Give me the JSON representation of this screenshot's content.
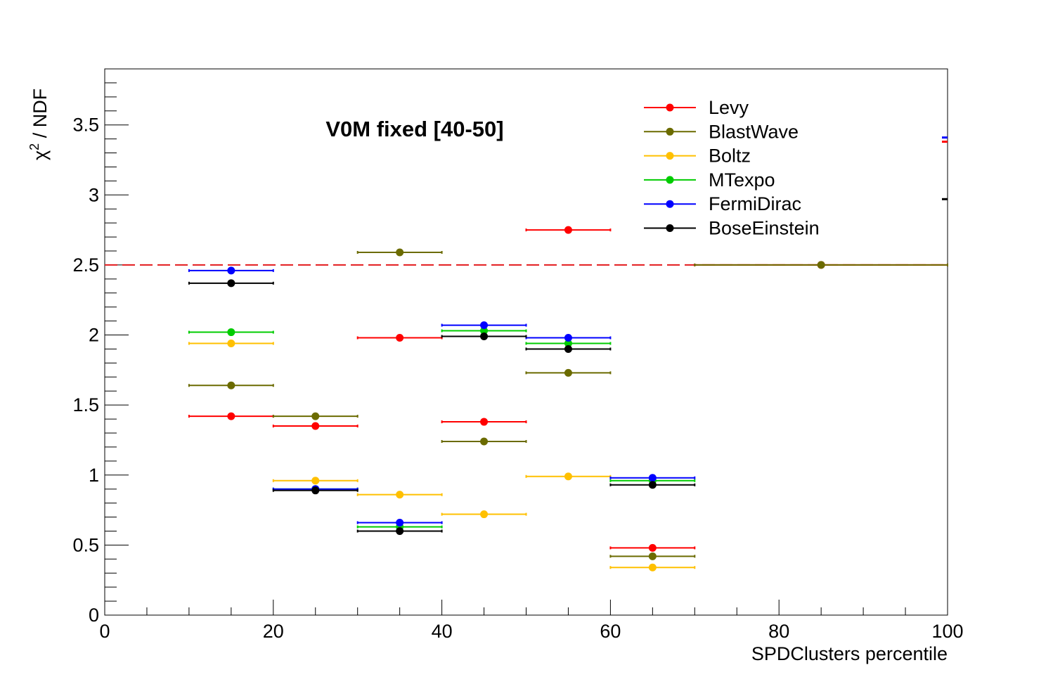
{
  "chart_data": {
    "type": "scatter",
    "title": "V0M fixed [40-50]",
    "xlabel": "SPDClusters percentile",
    "ylabel_base": "χ",
    "ylabel_sup": "2",
    "ylabel_rest": " / NDF",
    "xlim": [
      0,
      100
    ],
    "ylim": [
      0,
      3.9
    ],
    "x_ticks": [
      "0",
      "20",
      "40",
      "60",
      "80",
      "100"
    ],
    "y_ticks": [
      "0",
      "0.5",
      "1",
      "1.5",
      "2",
      "2.5",
      "3",
      "3.5"
    ],
    "reference_line": {
      "y": 2.5,
      "color": "#e31a1c",
      "style": "dashed"
    },
    "legend_position": "top-right",
    "series": [
      {
        "name": "Levy",
        "color": "#ff0000",
        "points": [
          {
            "x": 15,
            "xlo": 10,
            "xhi": 20,
            "y": 1.42
          },
          {
            "x": 25,
            "xlo": 20,
            "xhi": 30,
            "y": 1.35
          },
          {
            "x": 35,
            "xlo": 30,
            "xhi": 40,
            "y": 1.98
          },
          {
            "x": 45,
            "xlo": 40,
            "xhi": 50,
            "y": 1.38
          },
          {
            "x": 55,
            "xlo": 50,
            "xhi": 60,
            "y": 2.75
          },
          {
            "x": 65,
            "xlo": 60,
            "xhi": 70,
            "y": 0.48
          },
          {
            "x": 85,
            "xlo": 70,
            "xhi": 100,
            "y": 2.5
          }
        ],
        "edge_value": 3.38
      },
      {
        "name": "BlastWave",
        "color": "#6b6b00",
        "points": [
          {
            "x": 15,
            "xlo": 10,
            "xhi": 20,
            "y": 1.64
          },
          {
            "x": 25,
            "xlo": 20,
            "xhi": 30,
            "y": 1.42
          },
          {
            "x": 35,
            "xlo": 30,
            "xhi": 40,
            "y": 2.59
          },
          {
            "x": 45,
            "xlo": 40,
            "xhi": 50,
            "y": 1.24
          },
          {
            "x": 55,
            "xlo": 50,
            "xhi": 60,
            "y": 1.73
          },
          {
            "x": 65,
            "xlo": 60,
            "xhi": 70,
            "y": 0.42
          },
          {
            "x": 85,
            "xlo": 70,
            "xhi": 100,
            "y": 2.5
          }
        ]
      },
      {
        "name": "Boltz",
        "color": "#ffc000",
        "points": [
          {
            "x": 15,
            "xlo": 10,
            "xhi": 20,
            "y": 1.94
          },
          {
            "x": 25,
            "xlo": 20,
            "xhi": 30,
            "y": 0.96
          },
          {
            "x": 35,
            "xlo": 30,
            "xhi": 40,
            "y": 0.86
          },
          {
            "x": 45,
            "xlo": 40,
            "xhi": 50,
            "y": 0.72
          },
          {
            "x": 55,
            "xlo": 50,
            "xhi": 60,
            "y": 0.99
          },
          {
            "x": 65,
            "xlo": 60,
            "xhi": 70,
            "y": 0.34
          }
        ]
      },
      {
        "name": "MTexpo",
        "color": "#00cc00",
        "points": [
          {
            "x": 15,
            "xlo": 10,
            "xhi": 20,
            "y": 2.02
          },
          {
            "x": 25,
            "xlo": 20,
            "xhi": 30,
            "y": 0.9
          },
          {
            "x": 35,
            "xlo": 30,
            "xhi": 40,
            "y": 0.63
          },
          {
            "x": 45,
            "xlo": 40,
            "xhi": 50,
            "y": 2.03
          },
          {
            "x": 55,
            "xlo": 50,
            "xhi": 60,
            "y": 1.94
          },
          {
            "x": 65,
            "xlo": 60,
            "xhi": 70,
            "y": 0.96
          }
        ]
      },
      {
        "name": "FermiDirac",
        "color": "#0000ff",
        "points": [
          {
            "x": 15,
            "xlo": 10,
            "xhi": 20,
            "y": 2.46
          },
          {
            "x": 25,
            "xlo": 20,
            "xhi": 30,
            "y": 0.9
          },
          {
            "x": 35,
            "xlo": 30,
            "xhi": 40,
            "y": 0.66
          },
          {
            "x": 45,
            "xlo": 40,
            "xhi": 50,
            "y": 2.07
          },
          {
            "x": 55,
            "xlo": 50,
            "xhi": 60,
            "y": 1.98
          },
          {
            "x": 65,
            "xlo": 60,
            "xhi": 70,
            "y": 0.98
          }
        ],
        "edge_value": 3.41
      },
      {
        "name": "BoseEinstein",
        "color": "#000000",
        "points": [
          {
            "x": 15,
            "xlo": 10,
            "xhi": 20,
            "y": 2.37
          },
          {
            "x": 25,
            "xlo": 20,
            "xhi": 30,
            "y": 0.89
          },
          {
            "x": 35,
            "xlo": 30,
            "xhi": 40,
            "y": 0.6
          },
          {
            "x": 45,
            "xlo": 40,
            "xhi": 50,
            "y": 1.99
          },
          {
            "x": 55,
            "xlo": 50,
            "xhi": 60,
            "y": 1.9
          },
          {
            "x": 65,
            "xlo": 60,
            "xhi": 70,
            "y": 0.93
          }
        ],
        "edge_value": 2.97
      }
    ]
  }
}
